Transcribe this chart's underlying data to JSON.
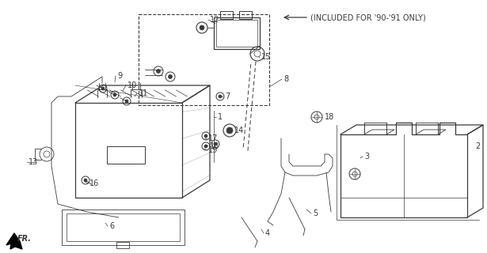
{
  "bg_color": "#ffffff",
  "lc": "#3a3a3a",
  "annotation_text": "(INCLUDED FOR '90-'91 ONLY)",
  "fig_w": 6.15,
  "fig_h": 3.2,
  "dpi": 100
}
